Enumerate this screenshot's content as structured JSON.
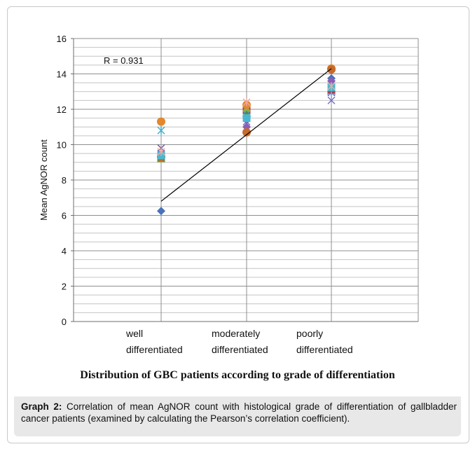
{
  "chart_data": {
    "type": "scatter",
    "categories": [
      "well differentiated",
      "moderately differentiated",
      "poorly differentiated"
    ],
    "category_lines": [
      [
        "well",
        "differentiated"
      ],
      [
        "moderately",
        "differentiated"
      ],
      [
        "poorly",
        "differentiated"
      ]
    ],
    "ylabel": "Mean AgNOR count",
    "xlabel": "Distribution of GBC patients according to grade of differentiation",
    "ylim": [
      0,
      16
    ],
    "yticks": [
      0,
      2,
      4,
      6,
      8,
      10,
      12,
      14,
      16
    ],
    "grid": true,
    "annotation": "R = 0.931",
    "trendline": {
      "from": [
        1,
        6.8
      ],
      "to": [
        3,
        14.3
      ]
    },
    "series": [
      {
        "marker": "diamond",
        "color": "#4a72b8",
        "points": [
          [
            1,
            6.25
          ],
          [
            2,
            10.7
          ],
          [
            3,
            13.75
          ]
        ]
      },
      {
        "marker": "square",
        "color": "#b5383b",
        "points": [
          [
            1,
            9.35
          ],
          [
            2,
            11.95
          ],
          [
            3,
            13.1
          ]
        ]
      },
      {
        "marker": "triangle",
        "color": "#90b040",
        "points": [
          [
            1,
            9.2
          ],
          [
            2,
            12.05
          ],
          [
            3,
            13.2
          ]
        ]
      },
      {
        "marker": "x",
        "color": "#6e5496",
        "points": [
          [
            1,
            9.8
          ],
          [
            2,
            11.2
          ],
          [
            3,
            12.95
          ]
        ]
      },
      {
        "marker": "star",
        "color": "#3aaed0",
        "points": [
          [
            1,
            10.8
          ],
          [
            2,
            11.7
          ],
          [
            3,
            13.4
          ]
        ]
      },
      {
        "marker": "circle",
        "color": "#e4872d",
        "points": [
          [
            1,
            11.3
          ],
          [
            2,
            12.25
          ],
          [
            3,
            14.3
          ]
        ]
      },
      {
        "marker": "plus",
        "color": "#8aa2d8",
        "points": [
          [
            1,
            9.3
          ],
          [
            2,
            11.6
          ],
          [
            3,
            12.85
          ]
        ]
      },
      {
        "marker": "diamond",
        "color": "#8a5fb8",
        "points": [
          [
            1,
            9.4
          ],
          [
            2,
            11.0
          ],
          [
            3,
            13.6
          ]
        ]
      },
      {
        "marker": "triangle",
        "color": "#5e8a3a",
        "points": [
          [
            1,
            9.25
          ],
          [
            2,
            11.7
          ],
          [
            3,
            13.2
          ]
        ]
      },
      {
        "marker": "x",
        "color": "#7070c8",
        "points": [
          [
            1,
            9.5
          ],
          [
            2,
            11.3
          ],
          [
            3,
            12.5
          ]
        ]
      },
      {
        "marker": "circle",
        "color": "#c76a2a",
        "points": [
          [
            1,
            9.3
          ],
          [
            2,
            10.7
          ],
          [
            3,
            14.25
          ]
        ]
      },
      {
        "marker": "square",
        "color": "#48b8d0",
        "points": [
          [
            1,
            9.4
          ],
          [
            2,
            11.5
          ],
          [
            3,
            13.25
          ]
        ]
      },
      {
        "marker": "star",
        "color": "#f0a8a0",
        "points": [
          [
            1,
            9.6
          ],
          [
            2,
            12.4
          ],
          [
            3,
            13.3
          ]
        ]
      }
    ]
  },
  "caption": {
    "title": "Distribution of GBC patients according to grade of differentiation",
    "label": "Graph 2:",
    "text": " Correlation of mean AgNOR count with histological grade of differentiation of gallbladder cancer patients (examined by calculating the Pearson’s correlation coefficient)."
  }
}
